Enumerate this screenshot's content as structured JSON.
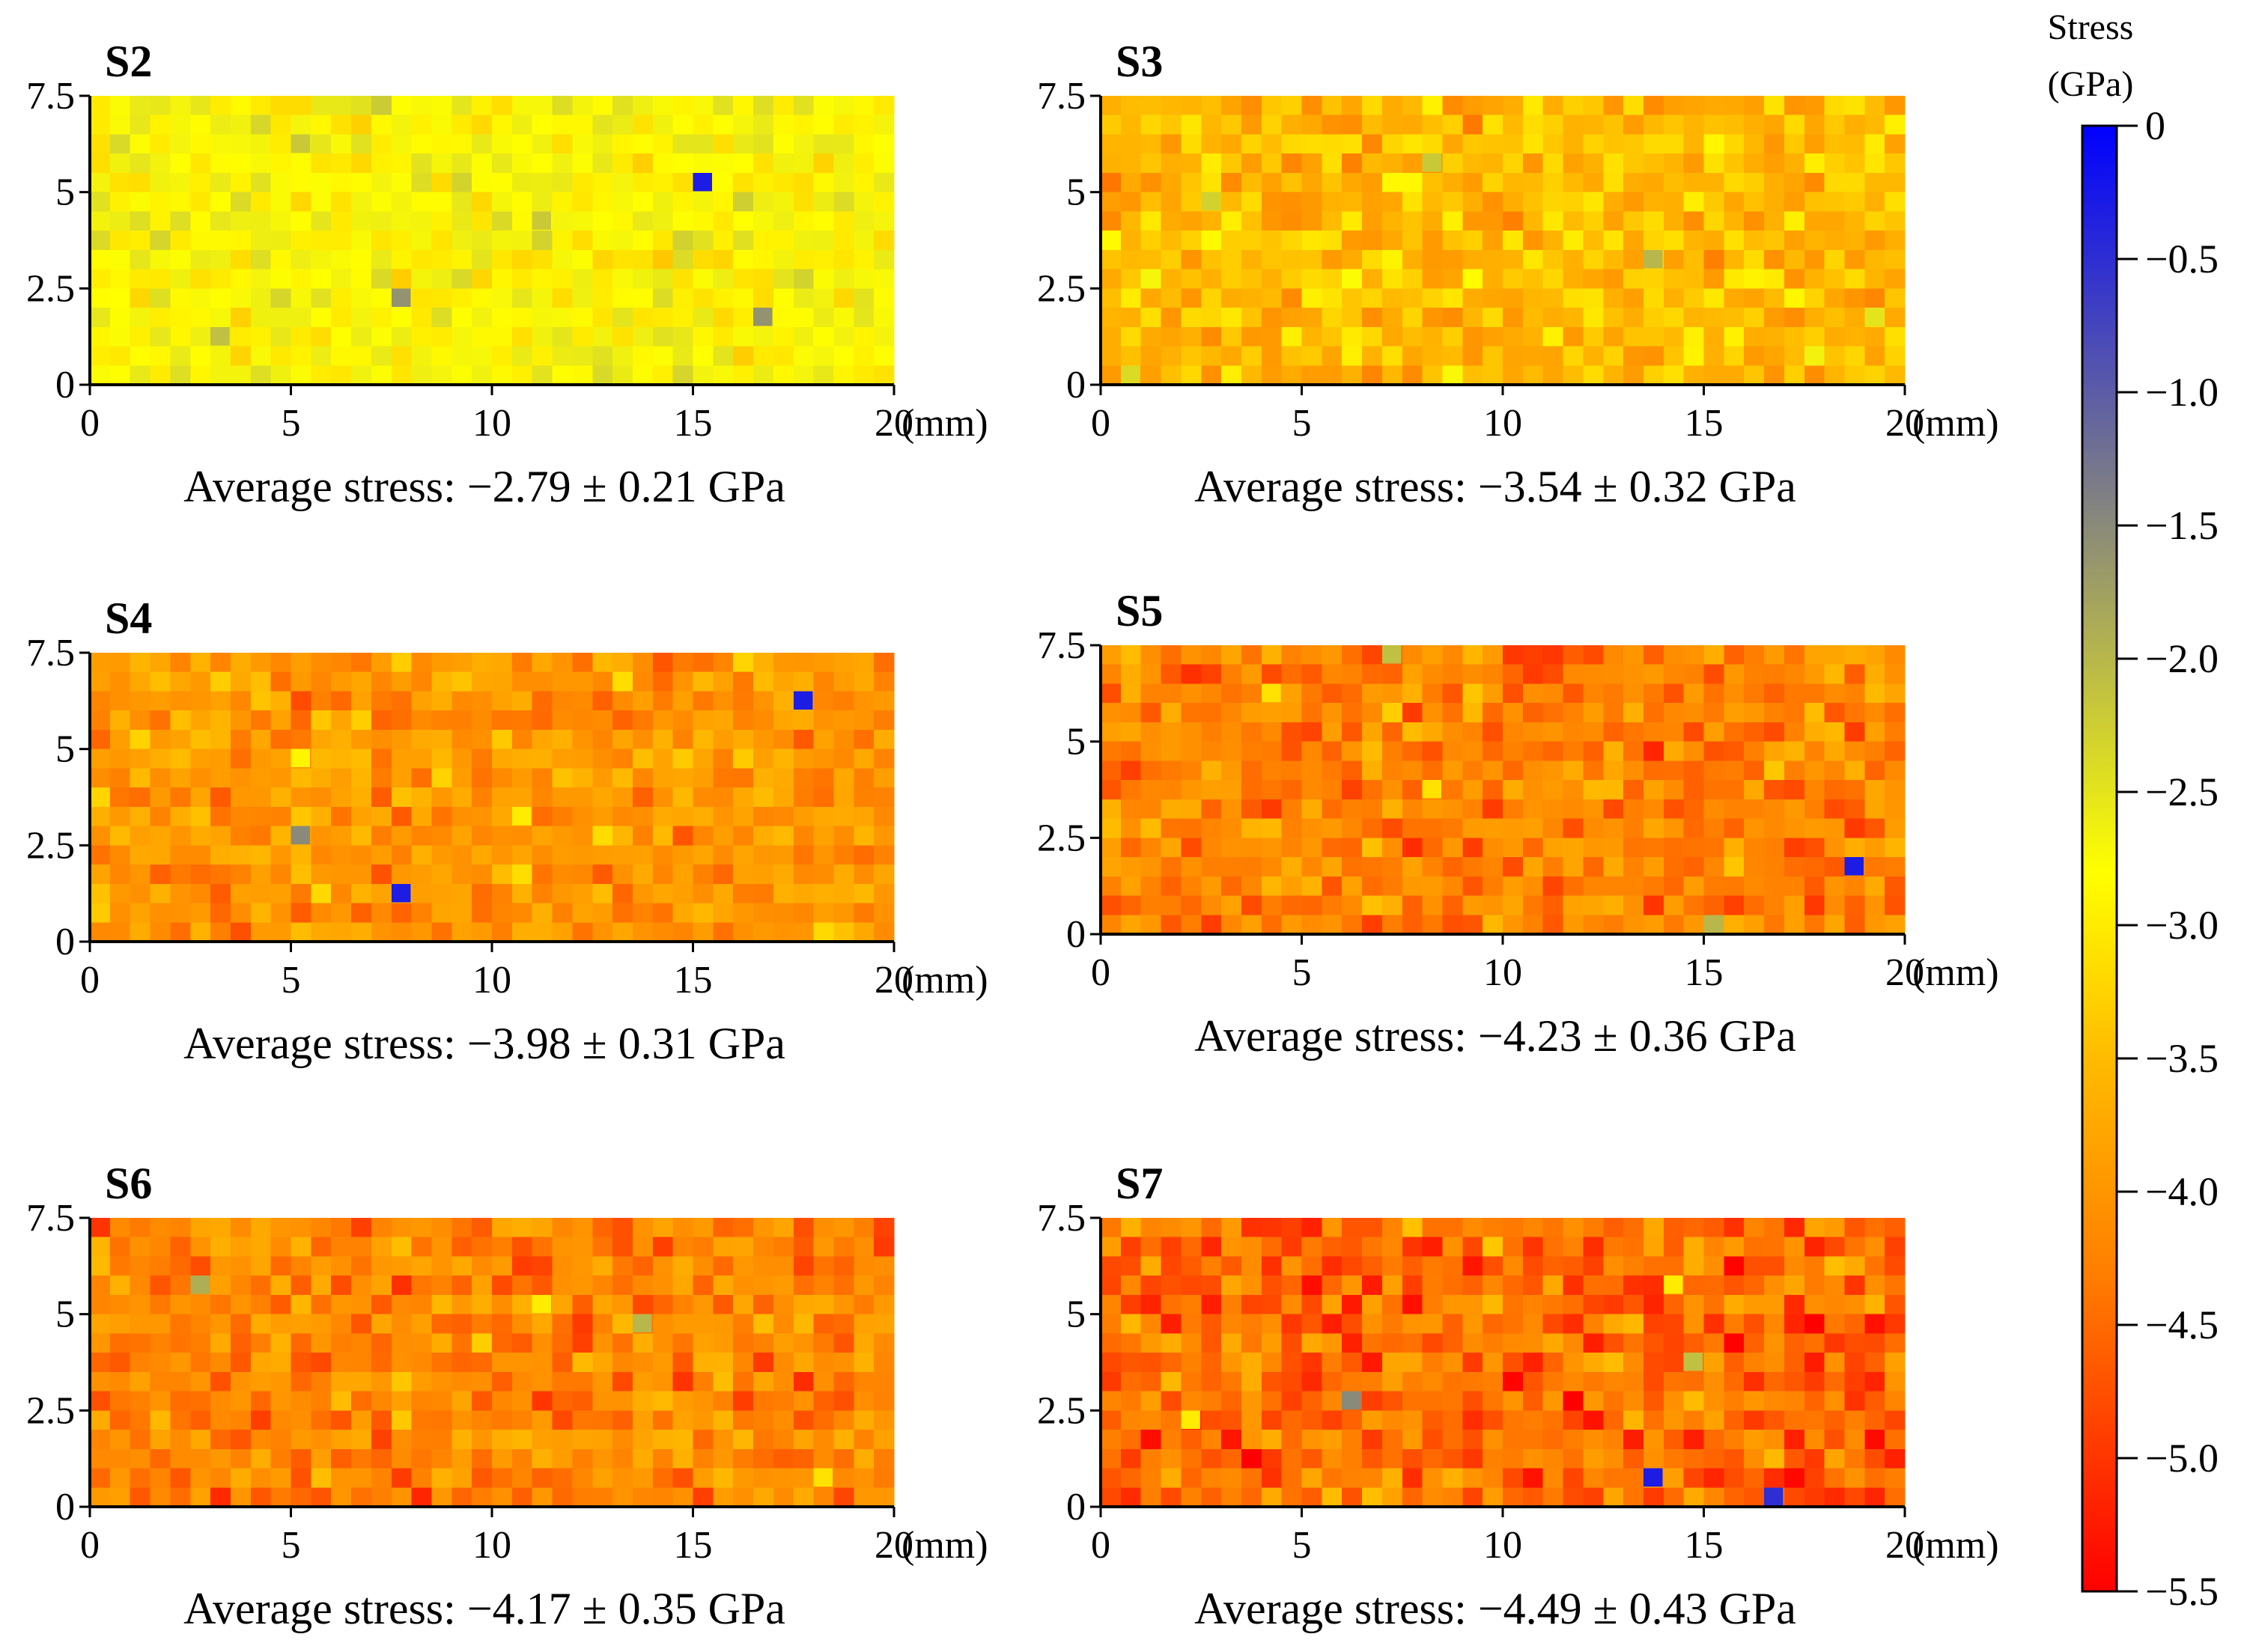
{
  "chart_data": {
    "type": "heatmap",
    "x_unit": "(mm)",
    "xlim": [
      0,
      20
    ],
    "ylim": [
      0,
      7.5
    ],
    "x_ticks": [
      "0",
      "5",
      "10",
      "15",
      "20"
    ],
    "y_ticks": [
      "0",
      "2.5",
      "5",
      "7.5"
    ],
    "grid": {
      "cols": 40,
      "rows": 15
    },
    "colorbar": {
      "title_line1": "Stress",
      "title_line2": "(GPa)",
      "range": [
        -5.5,
        0
      ],
      "tick_values": [
        0,
        -0.5,
        -1.0,
        -1.5,
        -2.0,
        -2.5,
        -3.0,
        -3.5,
        -4.0,
        -4.5,
        -5.0,
        -5.5
      ],
      "tick_labels": [
        "0",
        "−0.5",
        "−1.0",
        "−1.5",
        "−2.0",
        "−2.5",
        "−3.0",
        "−3.5",
        "−4.0",
        "−4.5",
        "−5.0",
        "−5.5"
      ],
      "stops": [
        {
          "value": 0,
          "color": "#0000ff"
        },
        {
          "value": -1.5,
          "color": "#8a8a7a"
        },
        {
          "value": -2.8,
          "color": "#ffff00"
        },
        {
          "value": -3.5,
          "color": "#ffbb00"
        },
        {
          "value": -4.3,
          "color": "#ff7f00"
        },
        {
          "value": -5.5,
          "color": "#ff0000"
        }
      ]
    },
    "panels": [
      {
        "title": "S2",
        "mean": -2.79,
        "std": 0.21,
        "seed": 12,
        "caption": "Average stress: −2.79 ± 0.21 GPa",
        "outliers": [
          {
            "x": 15.2,
            "y": 5.2,
            "stress": -0.3
          },
          {
            "x": 7.8,
            "y": 2.2,
            "stress": -1.6
          },
          {
            "x": 16.7,
            "y": 1.7,
            "stress": -1.6
          },
          {
            "x": 5.2,
            "y": 6.2,
            "stress": -2.2
          },
          {
            "x": 11.2,
            "y": 4.2,
            "stress": -2.2
          },
          {
            "x": 3.2,
            "y": 1.2,
            "stress": -2.1
          }
        ]
      },
      {
        "title": "S3",
        "mean": -3.54,
        "std": 0.32,
        "seed": 23,
        "caption": "Average stress: −3.54 ± 0.32 GPa",
        "outliers": [
          {
            "x": 8.2,
            "y": 5.7,
            "stress": -2.2
          },
          {
            "x": 2.8,
            "y": 4.7,
            "stress": -2.3
          },
          {
            "x": 13.7,
            "y": 3.2,
            "stress": -2.0
          },
          {
            "x": 19.2,
            "y": 1.7,
            "stress": -2.5
          },
          {
            "x": 0.8,
            "y": 0.2,
            "stress": -2.4
          }
        ]
      },
      {
        "title": "S4",
        "mean": -3.98,
        "std": 0.31,
        "seed": 34,
        "caption": "Average stress: −3.98 ± 0.31 GPa",
        "outliers": [
          {
            "x": 17.8,
            "y": 6.2,
            "stress": -0.3
          },
          {
            "x": 5.2,
            "y": 2.7,
            "stress": -1.5
          },
          {
            "x": 7.8,
            "y": 1.2,
            "stress": -0.3
          },
          {
            "x": 5.2,
            "y": 4.7,
            "stress": -2.9
          },
          {
            "x": 10.7,
            "y": 3.2,
            "stress": -3.0
          }
        ]
      },
      {
        "title": "S5",
        "mean": -4.23,
        "std": 0.36,
        "seed": 45,
        "caption": "Average stress: −4.23 ± 0.36 GPa",
        "outliers": [
          {
            "x": 18.8,
            "y": 1.7,
            "stress": -0.3
          },
          {
            "x": 7.2,
            "y": 7.2,
            "stress": -2.1
          },
          {
            "x": 15.2,
            "y": 0.2,
            "stress": -2.0
          },
          {
            "x": 4.2,
            "y": 6.2,
            "stress": -3.1
          },
          {
            "x": 8.2,
            "y": 3.7,
            "stress": -3.1
          }
        ]
      },
      {
        "title": "S6",
        "mean": -4.17,
        "std": 0.35,
        "seed": 56,
        "caption": "Average stress: −4.17 ± 0.35 GPa",
        "outliers": [
          {
            "x": 2.8,
            "y": 5.7,
            "stress": -1.9
          },
          {
            "x": 13.7,
            "y": 4.7,
            "stress": -2.0
          },
          {
            "x": 11.2,
            "y": 5.2,
            "stress": -3.0
          },
          {
            "x": 18.2,
            "y": 0.7,
            "stress": -3.1
          }
        ]
      },
      {
        "title": "S7",
        "mean": -4.49,
        "std": 0.43,
        "seed": 67,
        "caption": "Average stress: −4.49 ± 0.43 GPa",
        "outliers": [
          {
            "x": 13.7,
            "y": 0.7,
            "stress": -0.3
          },
          {
            "x": 16.7,
            "y": 0.2,
            "stress": -0.5
          },
          {
            "x": 6.2,
            "y": 2.7,
            "stress": -1.5
          },
          {
            "x": 14.7,
            "y": 3.7,
            "stress": -2.1
          },
          {
            "x": 2.2,
            "y": 2.2,
            "stress": -3.0
          },
          {
            "x": 14.2,
            "y": 5.7,
            "stress": -3.0
          }
        ]
      }
    ]
  }
}
